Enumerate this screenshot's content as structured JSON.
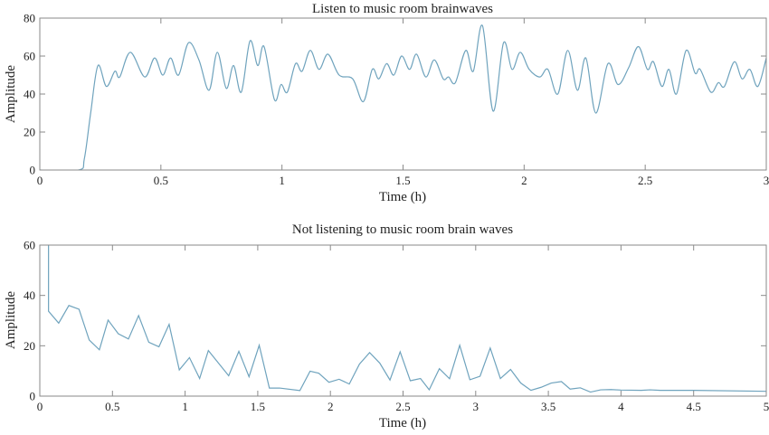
{
  "chart_data": [
    {
      "type": "line",
      "title": "Listen to music room brainwaves",
      "xlabel": "Time (h)",
      "ylabel": "Amplitude",
      "xlim": [
        0,
        3
      ],
      "ylim": [
        0,
        80
      ],
      "xticks": [
        0,
        0.5,
        1,
        1.5,
        2,
        2.5,
        3
      ],
      "xtick_labels": [
        "0",
        "0.5",
        "1",
        "1.5",
        "2",
        "2.5",
        "3"
      ],
      "yticks": [
        0,
        20,
        40,
        60,
        80
      ],
      "ytick_labels": [
        "0",
        "20",
        "40",
        "60",
        "80"
      ],
      "grid": false,
      "line_color": "#6fa3bd",
      "smooth": true,
      "x": [
        0,
        0.16,
        0.184,
        0.21,
        0.24,
        0.275,
        0.31,
        0.33,
        0.374,
        0.433,
        0.474,
        0.508,
        0.54,
        0.573,
        0.614,
        0.657,
        0.699,
        0.733,
        0.77,
        0.8,
        0.832,
        0.868,
        0.9,
        0.926,
        0.969,
        0.996,
        1.022,
        1.056,
        1.083,
        1.117,
        1.153,
        1.19,
        1.236,
        1.292,
        1.336,
        1.373,
        1.4,
        1.432,
        1.462,
        1.494,
        1.527,
        1.556,
        1.594,
        1.629,
        1.666,
        1.688,
        1.716,
        1.759,
        1.79,
        1.828,
        1.872,
        1.915,
        1.95,
        1.984,
        2.021,
        2.065,
        2.098,
        2.139,
        2.18,
        2.22,
        2.255,
        2.296,
        2.346,
        2.388,
        2.432,
        2.472,
        2.509,
        2.534,
        2.569,
        2.598,
        2.629,
        2.669,
        2.706,
        2.727,
        2.771,
        2.802,
        2.827,
        2.868,
        2.9,
        2.932,
        2.965,
        3.0
      ],
      "y": [
        0,
        0,
        6,
        30,
        55,
        44,
        52,
        49,
        62,
        49,
        59,
        50,
        59,
        50,
        67,
        58,
        42,
        62,
        43,
        55,
        41,
        68,
        55,
        65,
        37,
        45,
        41,
        56,
        52,
        63,
        53,
        61,
        50,
        48,
        36,
        53,
        48,
        56,
        50,
        60,
        53,
        61,
        49,
        58,
        48,
        49,
        46,
        63,
        52,
        76,
        31,
        67,
        53,
        62,
        53,
        49,
        53,
        40,
        63,
        42,
        59,
        30,
        56,
        45,
        54,
        65,
        53,
        57,
        44,
        53,
        40,
        63,
        51,
        53,
        41,
        46,
        44,
        57,
        48,
        53,
        44,
        59
      ]
    },
    {
      "type": "line",
      "title": "Not listening to music room brain waves",
      "xlabel": "Time (h)",
      "ylabel": "Amplitude",
      "xlim": [
        0,
        5
      ],
      "ylim": [
        0,
        60
      ],
      "xticks": [
        0,
        0.5,
        1,
        1.5,
        2,
        2.5,
        3,
        3.5,
        4,
        4.5,
        5
      ],
      "xtick_labels": [
        "0",
        "0.5",
        "1",
        "1.5",
        "2",
        "2.5",
        "3",
        "3.5",
        "4",
        "4.5",
        "5"
      ],
      "yticks": [
        0,
        20,
        40,
        60
      ],
      "ytick_labels": [
        "0",
        "20",
        "40",
        "60"
      ],
      "grid": false,
      "line_color": "#6fa3bd",
      "smooth": false,
      "x": [
        0.06,
        0.06,
        0.13,
        0.2,
        0.27,
        0.34,
        0.41,
        0.47,
        0.54,
        0.61,
        0.68,
        0.75,
        0.82,
        0.89,
        0.96,
        1.03,
        1.1,
        1.16,
        1.3,
        1.37,
        1.44,
        1.51,
        1.58,
        1.65,
        1.79,
        1.86,
        1.92,
        1.99,
        2.06,
        2.13,
        2.2,
        2.27,
        2.34,
        2.41,
        2.48,
        2.55,
        2.62,
        2.68,
        2.75,
        2.82,
        2.89,
        2.96,
        3.03,
        3.1,
        3.17,
        3.24,
        3.31,
        3.38,
        3.45,
        3.52,
        3.59,
        3.65,
        3.72,
        3.79,
        3.86,
        3.93,
        4.0,
        4.14,
        4.2,
        4.27,
        4.5,
        5.0
      ],
      "y": [
        62,
        33.7,
        29,
        36,
        34.5,
        22.3,
        18.4,
        30.2,
        24.8,
        22.7,
        32,
        21.4,
        19.6,
        28.5,
        10.4,
        15.3,
        7,
        18.1,
        8.1,
        17.8,
        7.7,
        20.2,
        3.2,
        3.2,
        2.2,
        9.9,
        9.1,
        5.5,
        6.7,
        4.8,
        12.7,
        17.3,
        13.1,
        6.4,
        17.6,
        6.1,
        7,
        2.5,
        10.9,
        6.9,
        20.2,
        6.5,
        7.9,
        19.1,
        7,
        10.6,
        5.2,
        2.3,
        3.5,
        5.2,
        5.8,
        2.8,
        3.3,
        1.6,
        2.5,
        2.6,
        2.4,
        2.3,
        2.5,
        2.3,
        2.3,
        1.9
      ]
    }
  ]
}
